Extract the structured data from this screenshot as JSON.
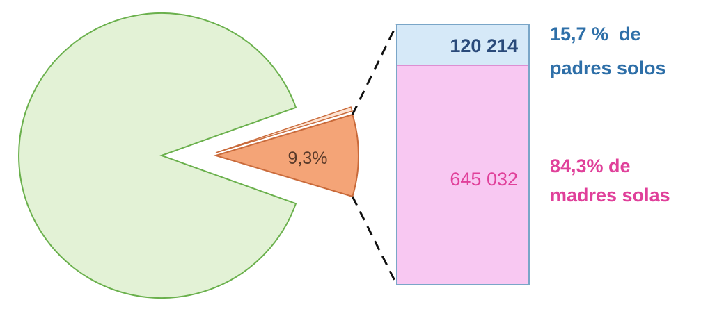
{
  "chart_data": {
    "type": "pie",
    "pie": {
      "slices": [
        {
          "value": 90.7,
          "color": "#e3f2d6",
          "stroke": "#6ab04c",
          "label": ""
        },
        {
          "value": 9.3,
          "color": "#f4a477",
          "stroke": "#c96a3a",
          "label": "9,3%",
          "exploded": true
        }
      ]
    },
    "breakdown": {
      "type": "stacked-bar",
      "segments": [
        {
          "value": 120214,
          "value_label": "120 214",
          "share": 15.7,
          "line1": "15,7 %  de",
          "line2": "padres solos",
          "fill": "#d6e9f8",
          "text_color": "#2e6fa8"
        },
        {
          "value": 645032,
          "value_label": "645 032",
          "share": 84.3,
          "line1": "84,3% de",
          "line2": "madres solas",
          "fill": "#f8c8f2",
          "text_color": "#e0409a"
        }
      ],
      "frame_color": "#7aa6c8"
    },
    "connector_color": "#111111"
  }
}
